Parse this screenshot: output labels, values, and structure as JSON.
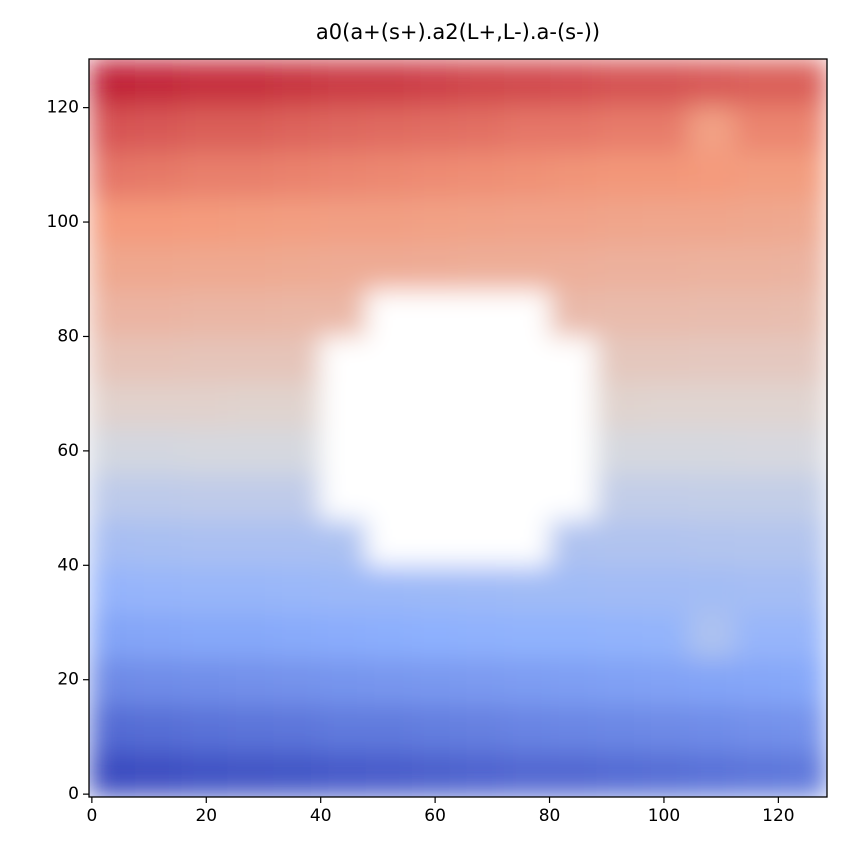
{
  "chart_data": {
    "type": "heatmap",
    "title": "a0(a+(s+).a2(L+,L-).a-(s-))",
    "xlim": [
      -0.5,
      128.5
    ],
    "ylim": [
      -0.5,
      128.5
    ],
    "xticks": [
      0,
      20,
      40,
      60,
      80,
      100,
      120
    ],
    "yticks": [
      0,
      20,
      40,
      60,
      80,
      100,
      120
    ],
    "clim": [
      -1,
      1
    ],
    "cmap_colors": [
      "#3b4cc0",
      "#8db0fe",
      "#dddcdc",
      "#f49a7b",
      "#b40426"
    ],
    "z": [
      [
        -1.0,
        -0.99,
        -0.97,
        -0.96,
        -0.95,
        -0.93,
        -0.92,
        -0.9,
        -0.88,
        -0.86,
        -0.86,
        -0.84,
        -0.83,
        -0.81,
        -0.79,
        -0.78
      ],
      [
        -0.84,
        -0.83,
        -0.81,
        -0.8,
        -0.79,
        -0.77,
        -0.77,
        -0.75,
        -0.74,
        -0.72,
        -0.71,
        -0.7,
        -0.69,
        -0.68,
        -0.66,
        -0.65
      ],
      [
        -0.69,
        -0.68,
        -0.67,
        -0.66,
        -0.65,
        -0.64,
        -0.63,
        -0.62,
        -0.61,
        -0.6,
        -0.59,
        -0.58,
        -0.57,
        -0.56,
        -0.55,
        -0.54
      ],
      [
        -0.56,
        -0.55,
        -0.54,
        -0.54,
        -0.53,
        -0.52,
        -0.51,
        -0.5,
        -0.49,
        -0.48,
        -0.48,
        -0.47,
        -0.46,
        -0.3,
        -0.44,
        -0.44
      ],
      [
        -0.45,
        -0.44,
        -0.43,
        -0.43,
        -0.42,
        -0.41,
        -0.41,
        -0.4,
        -0.39,
        -0.38,
        -0.38,
        -0.37,
        -0.37,
        -0.36,
        -0.35,
        -0.35
      ],
      [
        -0.34,
        -0.33,
        -0.32,
        -0.32,
        -0.32,
        -0.31,
        null,
        null,
        null,
        null,
        -0.29,
        -0.28,
        -0.28,
        -0.27,
        -0.26,
        -0.26
      ],
      [
        -0.2,
        -0.2,
        -0.19,
        -0.19,
        -0.19,
        null,
        null,
        null,
        null,
        null,
        null,
        -0.17,
        -0.17,
        -0.16,
        -0.16,
        -0.16
      ],
      [
        -0.06,
        -0.06,
        -0.05,
        -0.05,
        -0.05,
        null,
        null,
        null,
        null,
        null,
        null,
        -0.05,
        -0.05,
        -0.05,
        -0.04,
        -0.04
      ],
      [
        0.08,
        0.08,
        0.08,
        0.07,
        0.07,
        null,
        null,
        null,
        null,
        null,
        null,
        0.07,
        0.06,
        0.06,
        0.06,
        0.06
      ],
      [
        0.19,
        0.19,
        0.18,
        0.18,
        0.18,
        null,
        null,
        null,
        null,
        null,
        null,
        0.16,
        0.16,
        0.15,
        0.15,
        0.15
      ],
      [
        0.3,
        0.3,
        0.29,
        0.29,
        0.28,
        0.28,
        null,
        null,
        null,
        null,
        0.26,
        0.25,
        0.25,
        0.24,
        0.24,
        0.23
      ],
      [
        0.4,
        0.4,
        0.39,
        0.39,
        0.38,
        0.37,
        0.37,
        0.36,
        0.35,
        0.35,
        0.34,
        0.33,
        0.33,
        0.32,
        0.32,
        0.31
      ],
      [
        0.5,
        0.5,
        0.49,
        0.48,
        0.47,
        0.46,
        0.46,
        0.45,
        0.44,
        0.43,
        0.43,
        0.42,
        0.41,
        0.41,
        0.4,
        0.39
      ],
      [
        0.62,
        0.61,
        0.59,
        0.59,
        0.58,
        0.57,
        0.56,
        0.55,
        0.54,
        0.53,
        0.52,
        0.51,
        0.51,
        0.5,
        0.48,
        0.48
      ],
      [
        0.73,
        0.72,
        0.7,
        0.7,
        0.68,
        0.67,
        0.66,
        0.65,
        0.64,
        0.62,
        0.62,
        0.6,
        0.6,
        0.45,
        0.57,
        0.57
      ],
      [
        0.9,
        0.88,
        0.86,
        0.86,
        0.84,
        0.82,
        0.82,
        0.8,
        0.78,
        0.77,
        0.76,
        0.74,
        0.74,
        0.72,
        0.7,
        0.7
      ]
    ]
  }
}
